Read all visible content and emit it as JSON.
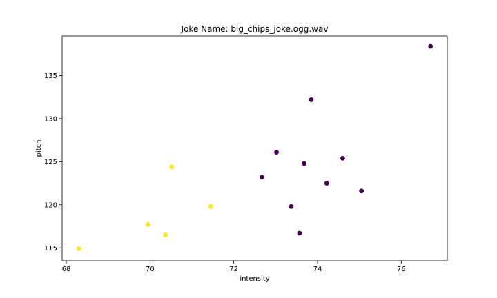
{
  "chart_data": {
    "type": "scatter",
    "title": "Joke Name: big_chips_joke.ogg.wav",
    "xlabel": "intensity",
    "ylabel": "pitch",
    "xlim": [
      67.9,
      77.1
    ],
    "ylim": [
      113.5,
      139.6
    ],
    "xticks": [
      68,
      70,
      72,
      74,
      76
    ],
    "yticks": [
      115,
      120,
      125,
      130,
      135
    ],
    "grid": false,
    "colors": {
      "group_a": "#fde725",
      "group_b": "#440154"
    },
    "points": [
      {
        "x": 68.3,
        "y": 114.9,
        "group": "group_a"
      },
      {
        "x": 69.95,
        "y": 117.7,
        "group": "group_a"
      },
      {
        "x": 70.37,
        "y": 116.5,
        "group": "group_a"
      },
      {
        "x": 70.52,
        "y": 124.4,
        "group": "group_a"
      },
      {
        "x": 71.45,
        "y": 119.8,
        "group": "group_a"
      },
      {
        "x": 72.67,
        "y": 123.2,
        "group": "group_b"
      },
      {
        "x": 73.02,
        "y": 126.1,
        "group": "group_b"
      },
      {
        "x": 73.37,
        "y": 119.8,
        "group": "group_b"
      },
      {
        "x": 73.57,
        "y": 116.7,
        "group": "group_b"
      },
      {
        "x": 73.68,
        "y": 124.8,
        "group": "group_b"
      },
      {
        "x": 73.85,
        "y": 132.2,
        "group": "group_b"
      },
      {
        "x": 74.22,
        "y": 122.5,
        "group": "group_b"
      },
      {
        "x": 74.6,
        "y": 125.4,
        "group": "group_b"
      },
      {
        "x": 75.05,
        "y": 121.6,
        "group": "group_b"
      },
      {
        "x": 76.7,
        "y": 138.4,
        "group": "group_b"
      }
    ]
  }
}
